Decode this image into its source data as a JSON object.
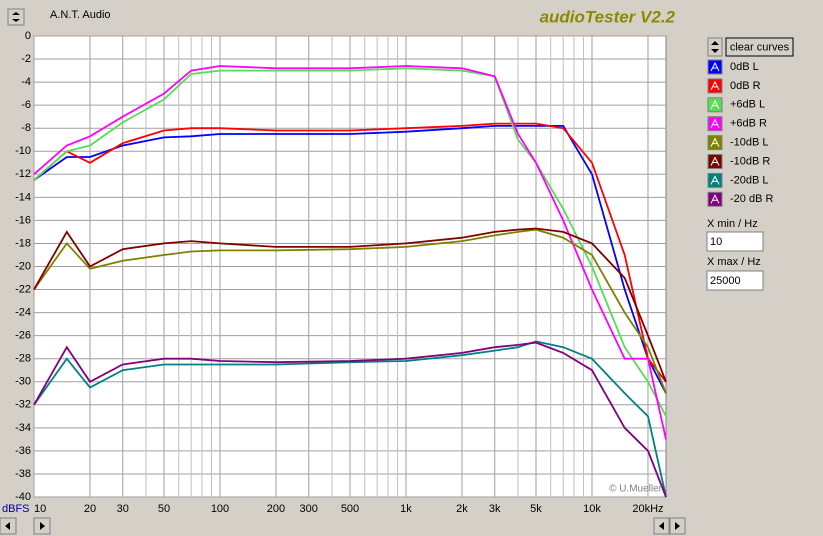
{
  "app": {
    "brand": "A.N.T. Audio",
    "title": "audioTester V2.2",
    "button": "clear curves",
    "xmin_label": "X min / Hz",
    "xmax_label": "X max / Hz",
    "copyright": "© U.Mueller",
    "y_unit": "dBFS"
  },
  "chart_data": {
    "type": "line",
    "log_x": true,
    "grid": true,
    "xlim": [
      10,
      25000
    ],
    "ylim": [
      -40,
      0
    ],
    "xticks": [
      10,
      20,
      30,
      50,
      100,
      200,
      300,
      500,
      {
        "value": 1000,
        "label": "1k"
      },
      {
        "value": 2000,
        "label": "2k"
      },
      {
        "value": 3000,
        "label": "3k"
      },
      {
        "value": 5000,
        "label": "5k"
      },
      {
        "value": 10000,
        "label": "10k"
      },
      {
        "value": 20000,
        "label": "20kHz"
      }
    ],
    "minor_xticks": [
      40,
      60,
      70,
      80,
      90,
      400,
      600,
      700,
      800,
      900,
      4000,
      6000,
      7000,
      8000,
      9000
    ],
    "yticks": [
      0,
      -2,
      -4,
      -6,
      -8,
      -10,
      -12,
      -14,
      -16,
      -18,
      -20,
      -22,
      -24,
      -26,
      -28,
      -30,
      -32,
      -34,
      -36,
      -38,
      -40
    ],
    "x": [
      10,
      15,
      20,
      30,
      50,
      70,
      100,
      200,
      500,
      1000,
      2000,
      3000,
      4000,
      5000,
      7000,
      10000,
      15000,
      20000,
      25000
    ],
    "series": [
      {
        "name": "0dB L",
        "color": "#0000ff",
        "values": [
          -12.5,
          -10.5,
          -10.5,
          -9.5,
          -8.8,
          -8.7,
          -8.5,
          -8.5,
          -8.5,
          -8.3,
          -8,
          -7.8,
          -7.8,
          -7.8,
          -7.8,
          -12,
          -22,
          -28,
          -31
        ]
      },
      {
        "name": "0dB R",
        "color": "#ff0000",
        "values": [
          -12.5,
          -10,
          -11,
          -9.3,
          -8.2,
          -8,
          -8,
          -8.2,
          -8.2,
          -8,
          -7.8,
          -7.6,
          -7.6,
          -7.6,
          -8,
          -11,
          -19,
          -28,
          -30
        ]
      },
      {
        "name": "+6dB L",
        "color": "#55dd55",
        "values": [
          -12.5,
          -10,
          -9.5,
          -7.5,
          -5.5,
          -3.3,
          -3,
          -3,
          -3,
          -2.8,
          -3,
          -3.5,
          -9,
          -11,
          -15,
          -20,
          -27,
          -30,
          -33
        ]
      },
      {
        "name": "+6dB R",
        "color": "#ff00ff",
        "values": [
          -12,
          -9.5,
          -8.7,
          -7,
          -5,
          -3,
          -2.6,
          -2.8,
          -2.8,
          -2.6,
          -2.8,
          -3.5,
          -8.5,
          -11,
          -16,
          -22,
          -28,
          -28,
          -35
        ]
      },
      {
        "name": "-10dB L",
        "color": "#808000",
        "values": [
          -22,
          -18,
          -20.2,
          -19.5,
          -19,
          -18.7,
          -18.6,
          -18.6,
          -18.5,
          -18.3,
          -17.8,
          -17.3,
          -17,
          -16.8,
          -17.5,
          -19,
          -24,
          -27,
          -31
        ]
      },
      {
        "name": "-10dB R",
        "color": "#800000",
        "values": [
          -22,
          -17,
          -20,
          -18.5,
          -18,
          -17.8,
          -18,
          -18.3,
          -18.3,
          -18,
          -17.5,
          -17,
          -16.8,
          -16.7,
          -17,
          -18,
          -21,
          -26,
          -30
        ]
      },
      {
        "name": "-20dB L",
        "color": "#008080",
        "values": [
          -32,
          -28,
          -30.5,
          -29,
          -28.5,
          -28.5,
          -28.5,
          -28.5,
          -28.3,
          -28.2,
          -27.7,
          -27.3,
          -27,
          -26.5,
          -27,
          -28,
          -31,
          -33,
          -40
        ]
      },
      {
        "name": "-20 dB R",
        "color": "#800080",
        "values": [
          -32,
          -27,
          -30,
          -28.5,
          -28,
          -28,
          -28.2,
          -28.3,
          -28.2,
          -28,
          -27.5,
          -27,
          -26.8,
          -26.6,
          -27.5,
          -29,
          -34,
          -36,
          -40
        ]
      }
    ]
  }
}
